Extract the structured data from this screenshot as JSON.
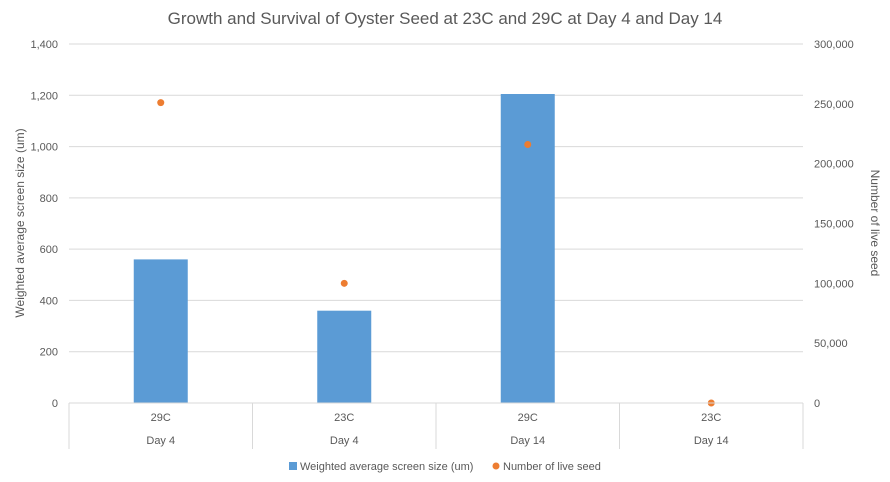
{
  "chart_data": {
    "type": "bar",
    "title": "Growth and Survival of Oyster Seed at 23C and 29C at Day 4 and Day 14",
    "categories": [
      {
        "temp": "29C",
        "day": "Day 4"
      },
      {
        "temp": "23C",
        "day": "Day 4"
      },
      {
        "temp": "29C",
        "day": "Day 14"
      },
      {
        "temp": "23C",
        "day": "Day 14"
      }
    ],
    "series": [
      {
        "name": "Weighted average screen size (um)",
        "type": "bar",
        "axis": "left",
        "color": "#5B9BD5",
        "values": [
          560,
          360,
          1205,
          0
        ]
      },
      {
        "name": "Number of live seed",
        "type": "scatter",
        "axis": "right",
        "color": "#ED7D31",
        "values": [
          251000,
          100000,
          216000,
          0
        ]
      }
    ],
    "y_left": {
      "label": "Weighted average screen size (um)",
      "range": [
        0,
        1400
      ],
      "ticks": [
        "0",
        "200",
        "400",
        "600",
        "800",
        "1,000",
        "1,200",
        "1,400"
      ]
    },
    "y_right": {
      "label": "Number of live seed",
      "range": [
        0,
        300000
      ],
      "ticks": [
        "0",
        "50,000",
        "100,000",
        "150,000",
        "200,000",
        "250,000",
        "300,000"
      ]
    },
    "grid": true,
    "legend": "bottom"
  }
}
